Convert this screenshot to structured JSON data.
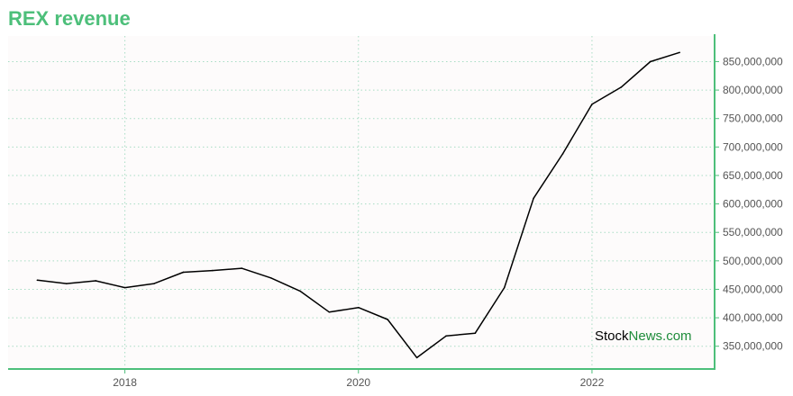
{
  "title": "REX revenue",
  "watermark": {
    "part1": "Stock",
    "part2": "News.com"
  },
  "colors": {
    "title": "#4dbf7a",
    "axis": "#4dbf7a",
    "grid": "#a8dcc4",
    "line": "#000000",
    "watermark_accent": "#1e8c3a"
  },
  "chart_data": {
    "type": "line",
    "title": "REX revenue",
    "xlabel": "",
    "ylabel": "",
    "x_ticks": [
      2018,
      2020,
      2022
    ],
    "y_ticks": [
      350000000,
      400000000,
      450000000,
      500000000,
      550000000,
      600000000,
      650000000,
      700000000,
      750000000,
      800000000,
      850000000
    ],
    "y_tick_labels": [
      "350,000,000",
      "400,000,000",
      "450,000,000",
      "500,000,000",
      "550,000,000",
      "600,000,000",
      "650,000,000",
      "700,000,000",
      "750,000,000",
      "800,000,000",
      "850,000,000"
    ],
    "x_tick_labels": [
      "2018",
      "2020",
      "2022"
    ],
    "xlim": [
      2017.0,
      2023.05
    ],
    "ylim": [
      310000000,
      895000000
    ],
    "grid": true,
    "y_axis_side": "right",
    "series": [
      {
        "values": [
          {
            "x": 2017.25,
            "y": 466000000
          },
          {
            "x": 2017.5,
            "y": 460000000
          },
          {
            "x": 2017.75,
            "y": 465000000
          },
          {
            "x": 2018.0,
            "y": 453000000
          },
          {
            "x": 2018.25,
            "y": 460000000
          },
          {
            "x": 2018.5,
            "y": 480000000
          },
          {
            "x": 2018.75,
            "y": 483000000
          },
          {
            "x": 2019.0,
            "y": 487000000
          },
          {
            "x": 2019.25,
            "y": 470000000
          },
          {
            "x": 2019.5,
            "y": 447000000
          },
          {
            "x": 2019.75,
            "y": 410000000
          },
          {
            "x": 2020.0,
            "y": 418000000
          },
          {
            "x": 2020.25,
            "y": 397000000
          },
          {
            "x": 2020.5,
            "y": 330000000
          },
          {
            "x": 2020.75,
            "y": 368000000
          },
          {
            "x": 2021.0,
            "y": 373000000
          },
          {
            "x": 2021.25,
            "y": 453000000
          },
          {
            "x": 2021.5,
            "y": 610000000
          },
          {
            "x": 2021.75,
            "y": 688000000
          },
          {
            "x": 2022.0,
            "y": 775000000
          },
          {
            "x": 2022.25,
            "y": 805000000
          },
          {
            "x": 2022.5,
            "y": 850000000
          },
          {
            "x": 2022.75,
            "y": 866000000
          }
        ]
      }
    ]
  }
}
